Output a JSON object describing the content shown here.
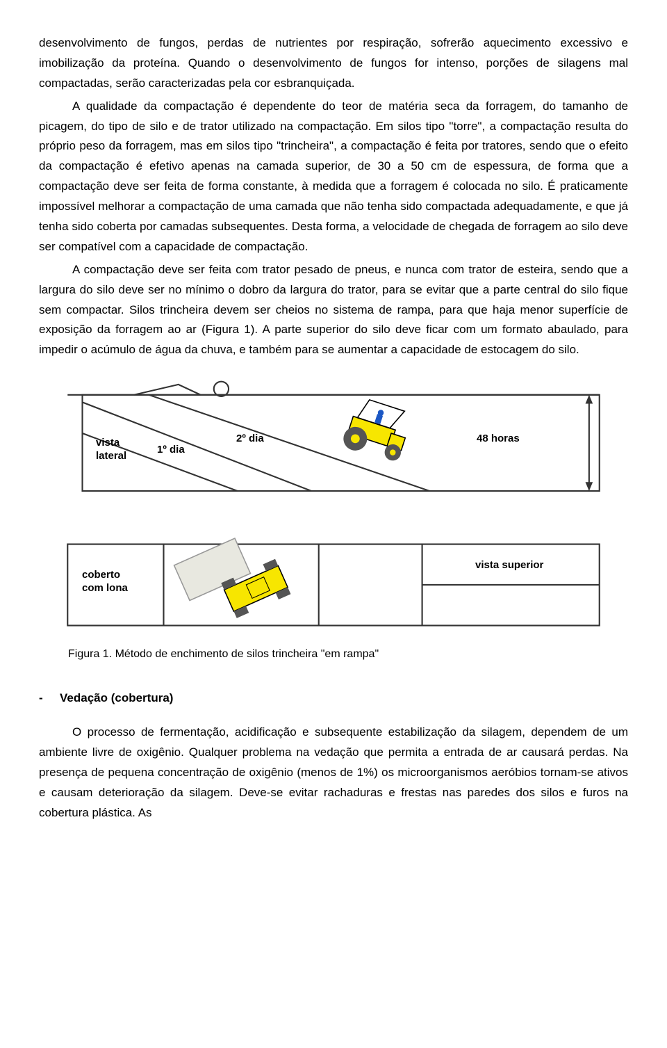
{
  "paragraphs": {
    "p1": "desenvolvimento de fungos, perdas de nutrientes por respiração, sofrerão aquecimento excessivo e imobilização da proteína. Quando o desenvolvimento de fungos for intenso, porções de silagens mal compactadas, serão caracterizadas pela cor esbranquiçada.",
    "p2": "A qualidade da compactação é dependente do teor de matéria seca da forragem, do tamanho de picagem, do tipo de silo e de trator utilizado na compactação. Em silos tipo \"torre\", a compactação resulta do próprio peso da forragem, mas em silos tipo \"trincheira\", a compactação é feita por tratores, sendo que o efeito da compactação é efetivo apenas na camada superior, de 30 a 50 cm de espessura, de forma que a compactação deve ser feita de forma constante, à medida que a forragem é colocada no silo. É praticamente impossível melhorar a compactação de uma camada que não tenha sido compactada adequadamente, e que já tenha sido coberta por camadas subsequentes. Desta forma, a velocidade de chegada de forragem ao silo deve ser compatível com a capacidade de compactação.",
    "p3": "A compactação deve ser feita com trator pesado de pneus, e nunca com trator de esteira, sendo que a largura do silo deve ser no mínimo o dobro da largura do trator, para se evitar que a parte central do silo fique sem compactar. Silos trincheira devem ser cheios no sistema de rampa, para que haja menor superfície de exposição da forragem ao ar (Figura 1). A parte superior do silo deve ficar com um formato abaulado, para impedir o acúmulo de água da chuva, e também para se aumentar a capacidade de estocagem do silo.",
    "p4": "O processo de fermentação, acidificação e subsequente estabilização da silagem, dependem de um ambiente livre de oxigênio. Qualquer problema na vedação que permita a entrada de ar causará perdas. Na presença de pequena concentração de oxigênio (menos de 1%) os microorganismos aeróbios tornam-se ativos e causam deterioração da silagem. Deve-se evitar rachaduras e frestas nas paredes dos silos e furos na cobertura plástica. As"
  },
  "figure": {
    "labels": {
      "vista_lateral": "vista\nlateral",
      "dia1": "1º dia",
      "dia2": "2º dia",
      "horas48": "48 horas",
      "coberto": "coberto\ncom lona",
      "vista_superior": "vista superior"
    },
    "caption": "Figura 1. Método de enchimento de silos trincheira \"em rampa\"",
    "colors": {
      "line": "#333333",
      "tractor_yellow": "#f7e600",
      "tractor_outline": "#000000",
      "wheel_black": "#555555",
      "wheel_hub": "#f7e600",
      "driver": "#1b57c4",
      "tarp": "#e8e8e0",
      "bg": "#ffffff"
    }
  },
  "section": {
    "heading": "Vedação (cobertura)",
    "bullet": "-"
  }
}
